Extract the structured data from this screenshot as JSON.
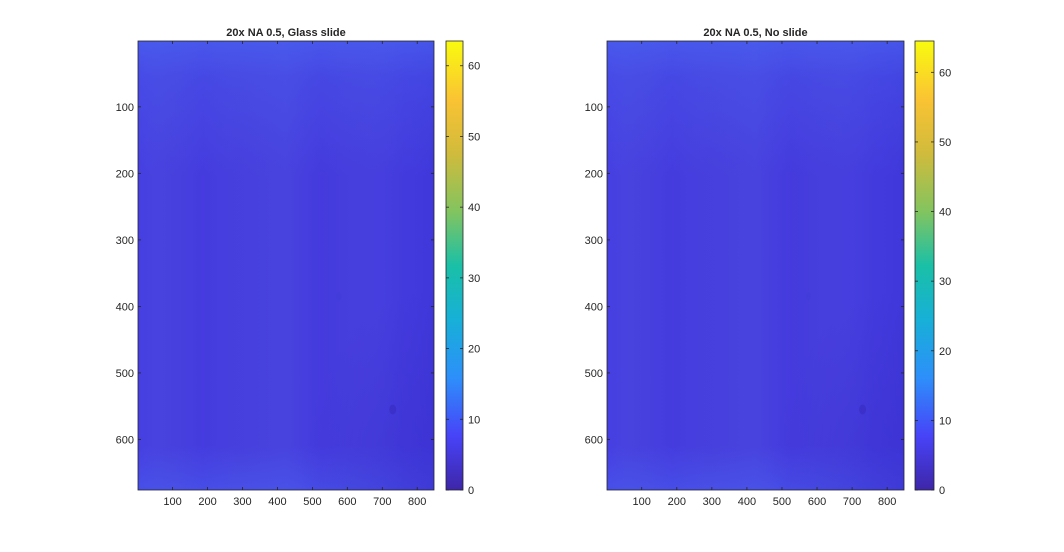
{
  "chart_data": [
    {
      "type": "heatmap",
      "title": "20x NA 0.5, Glass slide",
      "xlabel": "",
      "ylabel": "",
      "x_ticks": [
        100,
        200,
        300,
        400,
        500,
        600,
        700,
        800
      ],
      "y_ticks": [
        100,
        200,
        300,
        400,
        500,
        600
      ],
      "xlim": [
        1,
        848
      ],
      "ylim": [
        1,
        676
      ],
      "y_reversed": true,
      "colormap": "parula",
      "clim": [
        0,
        63.5
      ],
      "colorbar_ticks": [
        0,
        10,
        20,
        30,
        40,
        50,
        60
      ],
      "typical_value": 5,
      "value_range_observed": [
        3,
        7
      ],
      "features": [
        "faint vertical banding",
        "small dark spot near (730, 555)",
        "small dark spot near (575, 385)",
        "darker lower-right corner"
      ]
    },
    {
      "type": "heatmap",
      "title": "20x NA 0.5, No slide",
      "xlabel": "",
      "ylabel": "",
      "x_ticks": [
        100,
        200,
        300,
        400,
        500,
        600,
        700,
        800
      ],
      "y_ticks": [
        100,
        200,
        300,
        400,
        500,
        600
      ],
      "xlim": [
        1,
        848
      ],
      "ylim": [
        1,
        676
      ],
      "y_reversed": true,
      "colormap": "parula",
      "clim": [
        0,
        64.5
      ],
      "colorbar_ticks": [
        0,
        10,
        20,
        30,
        40,
        50,
        60
      ],
      "typical_value": 5,
      "value_range_observed": [
        3,
        7
      ],
      "features": [
        "faint vertical banding",
        "small dark spot near (730, 555)",
        "small dark spot near (575, 385)",
        "darker lower-right corner"
      ]
    }
  ],
  "colors": {
    "parula_stops": [
      "#3e26a8",
      "#4743f8",
      "#2d8ffa",
      "#17b0d7",
      "#1ac0a6",
      "#82c45f",
      "#f2b93b",
      "#fad22b",
      "#f9fb0e"
    ],
    "axis": "#262626"
  }
}
